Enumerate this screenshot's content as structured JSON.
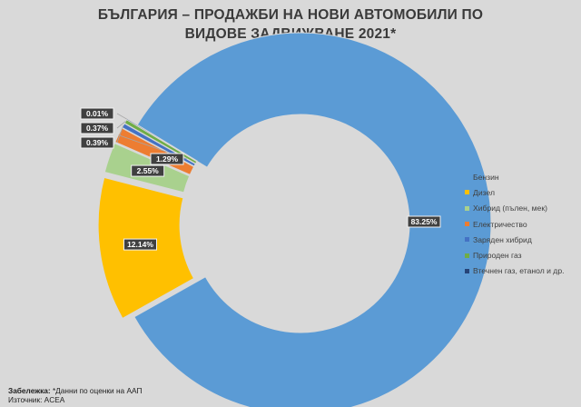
{
  "title_line1": "БЪЛГАРИЯ – ПРОДАЖБИ НА НОВИ АВТОМОБИЛИ ПО",
  "title_line2": "ВИДОВЕ ЗАДВИЖВАНЕ 2021*",
  "note": {
    "label": "Забележка:",
    "text": " *Данни по оценки на ААП",
    "source": "Източник: ACEA"
  },
  "chart_data": {
    "type": "pie",
    "variant": "donut",
    "title": "БЪЛГАРИЯ – ПРОДАЖБИ НА НОВИ АВТОМОБИЛИ ПО ВИДОВЕ ЗАДВИЖВАНЕ 2021*",
    "legend_position": "right",
    "slices": [
      {
        "name": "Бензин",
        "value": 83.25,
        "label": "83.25%",
        "color": "#5b9bd5"
      },
      {
        "name": "Дизел",
        "value": 12.14,
        "label": "12.14%",
        "color": "#ffc000"
      },
      {
        "name": "Хибрид (пълен, мек)",
        "value": 2.55,
        "label": "2.55%",
        "color": "#a9d18e"
      },
      {
        "name": "Електричество",
        "value": 1.29,
        "label": "1.29%",
        "color": "#ed7d31"
      },
      {
        "name": "Заряден хибрид",
        "value": 0.39,
        "label": "0.39%",
        "color": "#4472c4"
      },
      {
        "name": "Природен газ",
        "value": 0.37,
        "label": "0.37%",
        "color": "#70ad47"
      },
      {
        "name": "Втечнен газ, етанол и др.",
        "value": 0.01,
        "label": "0.01%",
        "color": "#264478"
      }
    ]
  }
}
